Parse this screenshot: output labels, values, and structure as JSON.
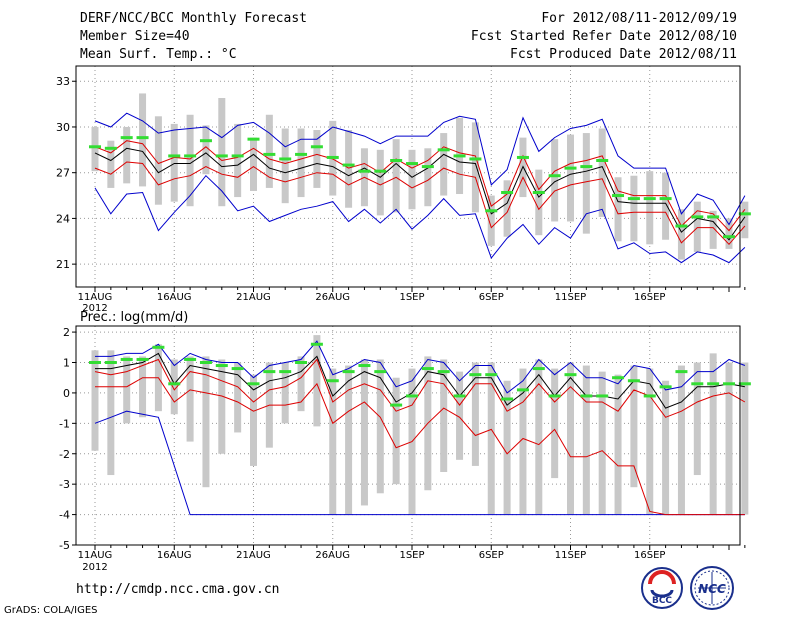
{
  "header": {
    "title": "DERF/NCC/BCC Monthly Forecast",
    "member_size": "Member Size=40",
    "variable": "Mean Surf. Temp.: °C",
    "forecast_period": "For 2012/08/11-2012/09/19",
    "fcst_started": "Fcst Started Refer Date 2012/08/10",
    "fcst_produced": "Fcst Produced Date 2012/08/11"
  },
  "footer": {
    "url": "http://cmdp.ncc.cma.gov.cn",
    "grads_credit": "GrADS: COLA/IGES",
    "logo_bcc": "BCC",
    "logo_ncc": "NCC"
  },
  "chart_data": [
    {
      "type": "line",
      "title": "Mean Surf. Temp.: °C",
      "x_ticks": [
        "11AUG",
        "16AUG",
        "21AUG",
        "26AUG",
        "1SEP",
        "6SEP",
        "11SEP",
        "16SEP"
      ],
      "year_label": "2012",
      "ylim": [
        19.5,
        34
      ],
      "yticks": [
        21,
        24,
        27,
        30,
        33
      ],
      "grid": true,
      "series": [
        {
          "name": "max",
          "color": "#0000cc",
          "values": [
            26.0,
            24.3,
            25.6,
            25.7,
            23.2,
            24.4,
            25.5,
            26.8,
            25.8,
            24.5,
            24.8,
            23.8,
            24.2,
            24.6,
            24.8,
            25.1,
            23.8,
            24.6,
            23.7,
            24.6,
            23.3,
            24.2,
            25.3,
            24.2,
            24.3,
            21.4,
            22.7,
            23.6,
            22.3,
            23.4,
            22.7,
            24.3,
            24.6,
            22.0,
            22.4,
            21.7,
            21.8,
            21.1,
            21.8,
            21.6,
            21.1,
            22.1
          ]
        },
        {
          "name": "q_low",
          "color": "#dd0000",
          "values": [
            27.3,
            26.9,
            27.7,
            27.6,
            26.2,
            26.6,
            26.8,
            27.4,
            26.9,
            26.7,
            27.4,
            26.7,
            26.4,
            26.7,
            27.0,
            26.9,
            26.2,
            26.7,
            26.2,
            26.7,
            26.0,
            26.5,
            27.3,
            26.9,
            26.7,
            23.4,
            24.4,
            26.7,
            24.6,
            25.8,
            26.2,
            26.4,
            26.6,
            24.3,
            24.4,
            24.4,
            24.4,
            22.4,
            23.4,
            23.4,
            22.3,
            23.5
          ]
        },
        {
          "name": "mean",
          "color": "#000000",
          "values": [
            28.3,
            27.8,
            28.6,
            28.4,
            27.0,
            27.6,
            27.6,
            28.3,
            27.4,
            27.5,
            28.2,
            27.3,
            27.0,
            27.3,
            27.6,
            27.4,
            26.8,
            27.3,
            26.7,
            27.6,
            26.7,
            27.3,
            28.2,
            27.7,
            27.6,
            24.3,
            25.0,
            27.4,
            25.4,
            26.4,
            26.9,
            27.1,
            27.4,
            25.1,
            25.0,
            25.0,
            25.0,
            23.1,
            24.0,
            23.8,
            22.6,
            24.1
          ]
        },
        {
          "name": "q_high",
          "color": "#dd0000",
          "values": [
            28.7,
            28.3,
            29.1,
            28.9,
            27.6,
            28.0,
            27.9,
            28.7,
            27.8,
            28.0,
            28.6,
            27.9,
            27.6,
            27.9,
            28.2,
            27.9,
            27.3,
            27.6,
            27.0,
            27.9,
            27.3,
            27.8,
            28.7,
            28.3,
            28.1,
            24.8,
            25.6,
            28.1,
            25.9,
            27.1,
            27.6,
            27.8,
            28.1,
            25.8,
            25.5,
            25.5,
            25.5,
            23.5,
            24.5,
            24.3,
            23.2,
            24.6
          ]
        },
        {
          "name": "min",
          "color": "#0000cc",
          "values": [
            30.4,
            30.0,
            30.9,
            30.4,
            29.6,
            29.8,
            29.9,
            30.0,
            29.3,
            30.1,
            30.3,
            29.6,
            28.7,
            29.2,
            29.2,
            30.0,
            29.7,
            29.4,
            28.9,
            29.4,
            29.4,
            29.4,
            30.3,
            30.7,
            30.5,
            26.2,
            27.2,
            30.6,
            28.4,
            29.3,
            29.9,
            30.1,
            30.5,
            28.1,
            27.3,
            27.3,
            27.3,
            24.3,
            25.6,
            25.2,
            23.6,
            25.5
          ]
        },
        {
          "name": "observed",
          "color": "#33dd33",
          "values": [
            28.7,
            28.6,
            29.3,
            29.3,
            null,
            28.1,
            28.1,
            29.1,
            28.1,
            28.1,
            29.2,
            28.2,
            27.9,
            28.2,
            28.7,
            28.0,
            27.5,
            27.1,
            27.1,
            27.8,
            27.6,
            27.4,
            28.5,
            28.1,
            27.9,
            24.5,
            25.7,
            28.0,
            25.7,
            26.8,
            27.3,
            27.4,
            27.8,
            25.5,
            25.3,
            25.3,
            25.3,
            23.5,
            24.1,
            24.1,
            22.8,
            24.3
          ]
        }
      ],
      "ensemble_range": {
        "low": [
          27.1,
          26.0,
          26.3,
          26.1,
          24.9,
          25.1,
          24.8,
          26.9,
          24.8,
          25.4,
          25.8,
          26.0,
          25.0,
          25.4,
          26.0,
          25.5,
          24.7,
          24.8,
          24.2,
          24.4,
          24.6,
          24.8,
          25.5,
          25.6,
          24.4,
          22.2,
          22.8,
          25.4,
          22.9,
          23.8,
          23.8,
          23.0,
          24.1,
          22.5,
          22.5,
          22.3,
          22.6,
          21.3,
          21.8,
          22.0,
          22.0,
          22.7
        ],
        "high": [
          30.0,
          29.1,
          30.0,
          32.2,
          30.7,
          30.2,
          30.8,
          30.1,
          31.9,
          30.2,
          29.3,
          30.8,
          29.9,
          29.9,
          29.8,
          30.4,
          29.8,
          28.6,
          28.5,
          29.2,
          28.5,
          28.6,
          29.6,
          30.6,
          30.3,
          25.5,
          26.5,
          29.3,
          27.2,
          29.2,
          29.5,
          29.6,
          29.9,
          26.7,
          26.8,
          27.1,
          27.0,
          24.6,
          25.1,
          24.5,
          24.0,
          25.1
        ]
      }
    },
    {
      "type": "line",
      "title": "Prec.: log(mm/d)",
      "x_ticks": [
        "11AUG",
        "16AUG",
        "21AUG",
        "26AUG",
        "1SEP",
        "6SEP",
        "11SEP",
        "16SEP"
      ],
      "year_label": "2012",
      "ylim": [
        -5,
        2.2
      ],
      "yticks": [
        -5,
        -4,
        -3,
        -2,
        -1,
        0,
        1,
        2
      ],
      "grid": true,
      "series": [
        {
          "name": "max",
          "color": "#0000cc",
          "values": [
            -1.0,
            -0.8,
            -0.6,
            -0.7,
            -0.8,
            -2.4,
            -4.0,
            -4.0,
            -4.0,
            -4.0,
            -4.0,
            -4.0,
            -4.0,
            -4.0,
            -4.0,
            -4.0,
            -4.0,
            -4.0,
            -4.0,
            -4.0,
            -4.0,
            -4.0,
            -4.0,
            -4.0,
            -4.0,
            -4.0,
            -4.0,
            -4.0,
            -4.0,
            -4.0,
            -4.0,
            -4.0,
            -4.0,
            -4.0,
            -4.0,
            -4.0,
            -4.0,
            -4.0,
            -4.0,
            -4.0,
            -4.0,
            -4.0
          ]
        },
        {
          "name": "q_low",
          "color": "#dd0000",
          "values": [
            0.2,
            0.2,
            0.2,
            0.5,
            0.5,
            -0.3,
            0.1,
            0.0,
            -0.1,
            -0.3,
            -0.6,
            -0.4,
            -0.4,
            -0.3,
            0.3,
            -1.0,
            -0.6,
            -0.3,
            -0.8,
            -1.8,
            -1.6,
            -1.0,
            -0.5,
            -0.8,
            -1.4,
            -1.2,
            -2.0,
            -1.5,
            -1.7,
            -1.2,
            -2.1,
            -2.1,
            -1.9,
            -2.4,
            -2.4,
            -3.9,
            -4.0,
            -4.0,
            -4.0,
            -4.0,
            -4.0,
            -4.0
          ]
        },
        {
          "name": "mean",
          "color": "#000000",
          "values": [
            0.8,
            0.8,
            0.9,
            1.0,
            1.3,
            0.3,
            0.9,
            0.8,
            0.7,
            0.6,
            0.1,
            0.4,
            0.5,
            0.7,
            1.2,
            -0.1,
            0.4,
            0.7,
            0.5,
            -0.3,
            0.0,
            0.7,
            0.6,
            -0.1,
            0.5,
            0.5,
            -0.4,
            0.0,
            0.6,
            -0.1,
            0.5,
            -0.1,
            -0.1,
            -0.2,
            0.4,
            0.3,
            -0.5,
            -0.3,
            0.2,
            0.2,
            0.3,
            0.2
          ]
        },
        {
          "name": "q_high",
          "color": "#dd0000",
          "values": [
            0.7,
            0.6,
            0.7,
            0.9,
            1.1,
            0.1,
            0.7,
            0.6,
            0.4,
            0.2,
            -0.3,
            0.1,
            0.2,
            0.5,
            1.1,
            -0.3,
            0.1,
            0.3,
            0.1,
            -0.6,
            -0.4,
            0.4,
            0.3,
            -0.4,
            0.3,
            0.3,
            -0.6,
            -0.3,
            0.3,
            -0.3,
            0.2,
            -0.3,
            -0.3,
            -0.6,
            0.1,
            -0.1,
            -0.8,
            -0.6,
            -0.3,
            -0.1,
            0.0,
            -0.3
          ]
        },
        {
          "name": "min",
          "color": "#0000cc",
          "values": [
            1.2,
            1.2,
            1.3,
            1.3,
            1.6,
            0.9,
            1.3,
            1.1,
            1.0,
            1.0,
            0.5,
            0.9,
            1.0,
            1.1,
            1.7,
            0.6,
            0.8,
            1.1,
            1.0,
            0.2,
            0.4,
            1.1,
            1.0,
            0.4,
            0.9,
            0.9,
            0.0,
            0.4,
            1.1,
            0.6,
            1.0,
            0.5,
            0.5,
            0.3,
            0.9,
            0.8,
            0.1,
            0.2,
            0.7,
            0.7,
            1.1,
            0.9
          ]
        },
        {
          "name": "observed",
          "color": "#33dd33",
          "values": [
            1.0,
            1.0,
            1.1,
            1.1,
            1.5,
            0.3,
            1.1,
            1.0,
            0.9,
            0.8,
            0.3,
            0.7,
            0.7,
            1.0,
            1.6,
            0.4,
            0.7,
            0.9,
            0.7,
            -0.4,
            -0.1,
            0.8,
            0.7,
            -0.1,
            0.6,
            0.6,
            -0.2,
            0.1,
            0.8,
            -0.1,
            0.6,
            -0.1,
            -0.1,
            0.5,
            0.4,
            -0.1,
            0.2,
            0.7,
            0.3,
            0.3,
            0.3,
            0.3
          ]
        }
      ],
      "ensemble_range": {
        "low": [
          -1.9,
          -2.7,
          -1.0,
          -0.8,
          -0.6,
          -0.7,
          -1.6,
          -3.1,
          -2.0,
          -1.3,
          -2.4,
          -1.8,
          -1.0,
          -0.6,
          -1.1,
          -4.0,
          -4.0,
          -3.7,
          -3.3,
          -3.0,
          -4.0,
          -3.2,
          -2.6,
          -2.2,
          -2.4,
          -4.0,
          -4.0,
          -4.0,
          -4.0,
          -2.8,
          -4.0,
          -4.0,
          -4.0,
          -4.0,
          -3.1,
          -4.0,
          -4.0,
          -4.0,
          -2.7,
          -4.0,
          -4.0,
          -4.0
        ],
        "high": [
          1.4,
          1.4,
          1.2,
          1.2,
          1.6,
          1.1,
          1.2,
          1.2,
          1.1,
          1.0,
          0.6,
          1.0,
          1.0,
          1.2,
          1.9,
          0.8,
          0.9,
          1.1,
          1.1,
          0.5,
          0.8,
          1.2,
          1.1,
          0.7,
          1.0,
          1.0,
          0.4,
          0.8,
          1.1,
          0.8,
          1.0,
          0.9,
          0.7,
          0.6,
          0.9,
          0.8,
          0.4,
          0.9,
          1.0,
          1.3,
          1.0,
          1.0
        ]
      }
    }
  ]
}
